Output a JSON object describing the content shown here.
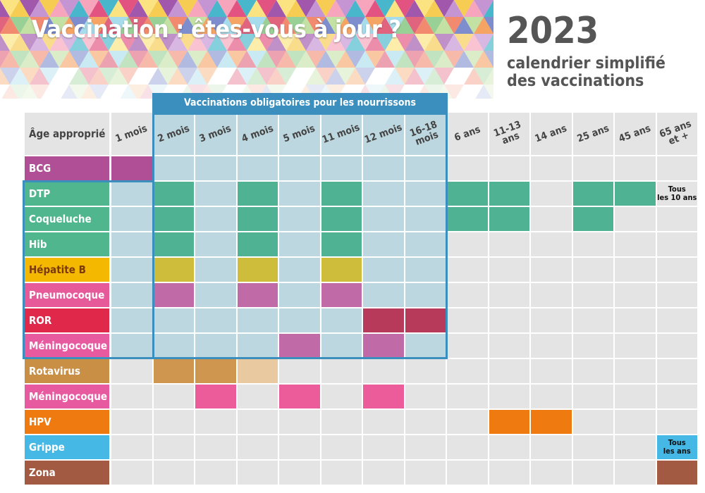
{
  "header": {
    "title": "Vaccination : êtes-vous à jour ?",
    "year": "2023",
    "subtitle_line1": "calendrier simplifié",
    "subtitle_line2": "des vaccinations"
  },
  "banner_colors": [
    "#e24a7b",
    "#f28b3a",
    "#f6c94a",
    "#7dc47a",
    "#3fb3c8",
    "#5a6fc0",
    "#9c4fa8",
    "#d93a5b",
    "#f5a0b8",
    "#b3d98a",
    "#fbe27a",
    "#8ed3e6",
    "#c28fd1",
    "#ef6a4a"
  ],
  "table": {
    "header_label": "Âge approprié",
    "mandatory_label": "Vaccinations obligatoires pour les nourrissons",
    "ages": [
      [
        "1 mois"
      ],
      [
        "2 mois"
      ],
      [
        "3 mois"
      ],
      [
        "4 mois"
      ],
      [
        "5 mois"
      ],
      [
        "11 mois"
      ],
      [
        "12 mois"
      ],
      [
        "16-18",
        "mois"
      ],
      [
        "6 ans"
      ],
      [
        "11-13",
        "ans"
      ],
      [
        "14 ans"
      ],
      [
        "25 ans"
      ],
      [
        "45 ans"
      ],
      [
        "65 ans",
        "et +"
      ]
    ],
    "vaccines": [
      {
        "name": "BCG",
        "color": "#b04f95",
        "doses": [
          0
        ],
        "dose_color": "#b04f95",
        "mandatory": false
      },
      {
        "name": "DTP",
        "color": "#4fb68e",
        "doses": [
          1,
          3,
          5,
          8,
          9,
          11,
          12
        ],
        "dose_color": "#4fb393",
        "mandatory": true,
        "note": {
          "col": 13,
          "lines": [
            "Tous",
            "les 10 ans"
          ]
        }
      },
      {
        "name": "Coqueluche",
        "color": "#4fb68e",
        "doses": [
          1,
          3,
          5,
          8,
          9,
          11
        ],
        "dose_color": "#4fb393",
        "mandatory": true
      },
      {
        "name": "Hib",
        "color": "#4fb68e",
        "doses": [
          1,
          3,
          5
        ],
        "dose_color": "#4fb393",
        "mandatory": true
      },
      {
        "name": "Hépatite B",
        "color": "#f5b800",
        "doses": [
          1,
          3,
          5
        ],
        "dose_color": "#cdbd3a",
        "mandatory": true,
        "text_color": "#7a3a0a"
      },
      {
        "name": "Pneumocoque",
        "color": "#e75a9a",
        "doses": [
          1,
          3,
          5
        ],
        "dose_color": "#c06ba8",
        "mandatory": true
      },
      {
        "name": "ROR",
        "color": "#e0284a",
        "doses": [
          6,
          7
        ],
        "dose_color": "#b83a5a",
        "mandatory": true
      },
      {
        "name": "Méningocoque C",
        "color": "#e75aa0",
        "doses": [
          4,
          6
        ],
        "dose_color": "#c06aa8",
        "mandatory": true
      },
      {
        "name": "Rotavirus",
        "color": "#c98f45",
        "doses": [
          1,
          2
        ],
        "dose_color": "#cf9650",
        "light_doses": [
          3
        ],
        "light_color": "#e8c9a0",
        "mandatory": false
      },
      {
        "name": "Méningocoque B",
        "color": "#e75aa0",
        "doses": [
          2,
          4,
          6
        ],
        "dose_color": "#ec5b9a",
        "mandatory": false
      },
      {
        "name": "HPV",
        "color": "#ee7a10",
        "doses": [
          9,
          10
        ],
        "dose_color": "#ee7a10",
        "mandatory": false
      },
      {
        "name": "Grippe",
        "color": "#45b8e6",
        "doses": [],
        "dose_color": "#45b8e6",
        "mandatory": false,
        "note_bg": "#45b8e6",
        "note": {
          "col": 13,
          "lines": [
            "Tous",
            "les ans"
          ]
        }
      },
      {
        "name": "Zona",
        "color": "#a25a42",
        "doses": [
          13
        ],
        "dose_color": "#a25a42",
        "mandatory": false
      }
    ],
    "colors": {
      "empty": "#e4e4e4",
      "mandatory_empty": "#bcd7df",
      "mandatory_frame": "#3a8fbe"
    }
  }
}
